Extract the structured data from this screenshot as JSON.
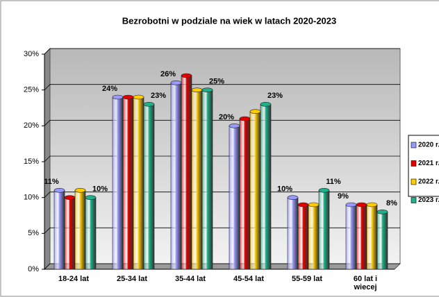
{
  "chart_data": {
    "type": "bar",
    "title": "Bezrobotni w podziale na wiek w latach 2020-2023",
    "categories": [
      "18-24 lat",
      "25-34 lat",
      "35-44 lat",
      "45-54 lat",
      "55-59 lat",
      "60 lat i wiecej"
    ],
    "series": [
      {
        "name": "2020 r.",
        "color": "#9999ff",
        "values": [
          11,
          24,
          26,
          20,
          10,
          9
        ],
        "value_labels": [
          "11%",
          "24%",
          "26%",
          "20%",
          "10%",
          "9%"
        ]
      },
      {
        "name": "2021 r.",
        "color": "#e00000",
        "values": [
          10,
          24,
          27,
          21,
          9,
          9
        ]
      },
      {
        "name": "2022 r.",
        "color": "#ffcc00",
        "values": [
          11,
          24,
          25,
          22,
          9,
          9
        ]
      },
      {
        "name": "2023 r.",
        "color": "#20b08a",
        "values": [
          10,
          23,
          25,
          23,
          11,
          8
        ],
        "value_labels": [
          "10%",
          "23%",
          "25%",
          "23%",
          "11%",
          "8%"
        ]
      }
    ],
    "ylim": [
      0,
      30
    ],
    "yticks": [
      {
        "value": 0,
        "label": "0%"
      },
      {
        "value": 5,
        "label": "5%"
      },
      {
        "value": 10,
        "label": "10%"
      },
      {
        "value": 15,
        "label": "15%"
      },
      {
        "value": 20,
        "label": "20%"
      },
      {
        "value": 25,
        "label": "25%"
      },
      {
        "value": 30,
        "label": "30%"
      }
    ],
    "grid": true,
    "legend": "right"
  }
}
